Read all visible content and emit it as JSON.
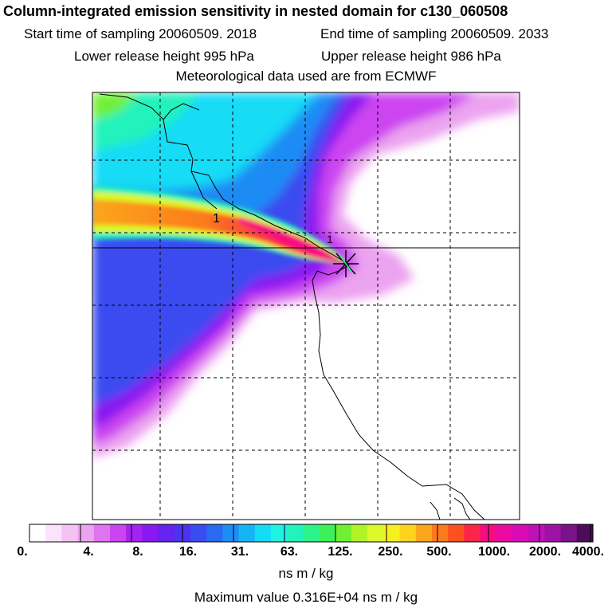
{
  "header": {
    "title": "Column-integrated emission sensitivity in nested domain for c130_060508",
    "start_time": "Start time of sampling 20060509.  2018",
    "end_time": "End time of sampling 20060509.  2033",
    "lower_release": "Lower release height  995 hPa",
    "upper_release": "Upper release height  986 hPa",
    "met_data": "Meteorological data used are from ECMWF"
  },
  "map": {
    "contour_labels": [
      "1",
      "1"
    ]
  },
  "colorbar": {
    "labels": [
      "0.",
      "4.",
      "8.",
      "16.",
      "31.",
      "63.",
      "125.",
      "250.",
      "500.",
      "1000.",
      "2000.",
      "4000."
    ],
    "colors": [
      "#ffffff",
      "#fbe3fb",
      "#f4c3f4",
      "#eca3f0",
      "#df73f0",
      "#cc44f0",
      "#a522f0",
      "#8a18f0",
      "#6622ee",
      "#4c33f0",
      "#3a4cf0",
      "#2a6af2",
      "#1e8cf4",
      "#15b4f6",
      "#14dcf6",
      "#1ef2e4",
      "#22f2bc",
      "#2cf28a",
      "#3cf058",
      "#70f030",
      "#b0f428",
      "#dcf828",
      "#f6f020",
      "#fcd41e",
      "#fca61c",
      "#fc7a1c",
      "#fc5020",
      "#fc2448",
      "#f80c82",
      "#ec0aa0",
      "#d80cb4",
      "#c010b8",
      "#a012a6",
      "#7a1288",
      "#4c0c5a"
    ],
    "unit": "ns m / kg"
  },
  "footer": {
    "max_value": "Maximum value  0.316E+04 ns m / kg"
  }
}
